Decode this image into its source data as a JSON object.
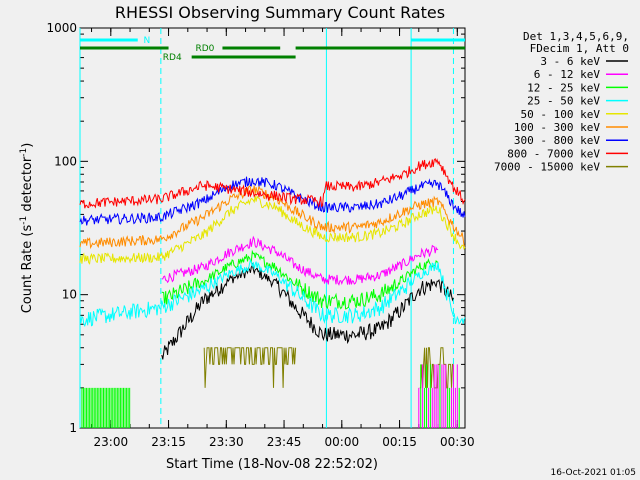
{
  "chart_data": {
    "type": "line",
    "title": "RHESSI Observing Summary Count Rates",
    "xlabel": "Start Time (18-Nov-08 22:52:02)",
    "ylabel": "Count Rate (s⁻¹ detector⁻¹)",
    "ylabel_main": "Count Rate (s",
    "ylabel_sup1": "-1",
    "ylabel_mid": " detector",
    "ylabel_sup2": "-1",
    "ylabel_end": ")",
    "yscale": "log",
    "ylim": [
      1,
      1000
    ],
    "xlim_minutes": [
      0,
      100
    ],
    "x_unit": "minutes after 22:52:02",
    "ytick_values": [
      1,
      10,
      100,
      1000
    ],
    "ytick_labels": [
      "1",
      "10",
      "100",
      "1000"
    ],
    "xtick_minutes": [
      8,
      23,
      38,
      53,
      68,
      83,
      98
    ],
    "xtick_labels": [
      "23:00",
      "23:15",
      "23:30",
      "23:45",
      "00:00",
      "00:15",
      "00:30"
    ],
    "legend_header": [
      "Det 1,3,4,5,6,9,",
      "FDecim 1, Att 0"
    ],
    "timestamp": "16-Oct-2021 01:05",
    "mode_bars": {
      "n_label": "N",
      "rd0_label": "RD0",
      "rd4_label": "RD4",
      "cyan": "#00ffff",
      "green": "#008000"
    },
    "vertical_markers_minutes": [
      21,
      97
    ],
    "vertical_lines_minutes": [
      0,
      64
    ],
    "series": [
      {
        "name": "3 - 6 keV",
        "color": "#000000",
        "t": [
          0,
          21,
          32,
          39,
          45,
          51,
          56,
          63,
          64,
          72,
          78,
          84,
          88,
          93,
          97,
          100
        ],
        "v": [
          null,
          3.3,
          9.0,
          13.0,
          15.5,
          12.0,
          8.0,
          5.0,
          5.0,
          5.0,
          5.5,
          8.0,
          11.0,
          12.5,
          9.0,
          null
        ]
      },
      {
        "name": "6 - 12 keV",
        "color": "#ff00ff",
        "t": [
          0,
          21,
          32,
          39,
          45,
          51,
          56,
          63,
          64,
          72,
          78,
          84,
          88,
          93,
          97,
          100
        ],
        "v": [
          null,
          13.0,
          16.0,
          21.0,
          25.0,
          21.0,
          16.5,
          13.0,
          13.0,
          13.0,
          14.0,
          17.0,
          20.0,
          22.0,
          null,
          null
        ]
      },
      {
        "name": "12 - 25 keV",
        "color": "#00ff00",
        "t": [
          0,
          21,
          32,
          39,
          45,
          51,
          56,
          63,
          64,
          72,
          78,
          84,
          88,
          93,
          97,
          100
        ],
        "v": [
          null,
          9.0,
          12.5,
          16.5,
          19.5,
          16.0,
          12.0,
          9.0,
          9.0,
          9.0,
          10.0,
          13.0,
          16.0,
          18.0,
          null,
          null
        ]
      },
      {
        "name": "25 - 50 keV",
        "color": "#00ffff",
        "t": [
          0,
          21,
          32,
          39,
          45,
          51,
          56,
          63,
          64,
          72,
          78,
          84,
          88,
          93,
          97,
          100
        ],
        "v": [
          6.5,
          8.0,
          11.0,
          14.5,
          17.0,
          14.0,
          10.5,
          7.0,
          7.0,
          7.0,
          8.0,
          11.0,
          14.0,
          17.0,
          7.0,
          6.5
        ]
      },
      {
        "name": "50 - 100 keV",
        "color": "#e6e600",
        "t": [
          0,
          21,
          32,
          39,
          45,
          51,
          56,
          63,
          64,
          72,
          78,
          84,
          88,
          93,
          97,
          100
        ],
        "v": [
          18.5,
          19.0,
          28.0,
          42.0,
          52.0,
          45.0,
          35.0,
          27.0,
          27.0,
          27.0,
          29.0,
          34.0,
          40.0,
          44.0,
          28.0,
          21.0
        ]
      },
      {
        "name": "100 - 300 keV",
        "color": "#ff8c00",
        "t": [
          0,
          21,
          32,
          39,
          45,
          51,
          56,
          63,
          64,
          72,
          78,
          84,
          88,
          93,
          97,
          100
        ],
        "v": [
          24.0,
          26.0,
          38.0,
          52.0,
          62.0,
          53.0,
          42.0,
          32.0,
          32.0,
          32.0,
          35.0,
          42.0,
          47.0,
          50.0,
          33.0,
          25.0
        ]
      },
      {
        "name": "300 - 800 keV",
        "color": "#0000ff",
        "t": [
          0,
          21,
          32,
          39,
          45,
          51,
          56,
          63,
          64,
          72,
          78,
          84,
          88,
          93,
          97,
          100
        ],
        "v": [
          36.0,
          38.0,
          50.0,
          66.0,
          72.0,
          66.0,
          55.0,
          45.0,
          45.0,
          45.0,
          48.0,
          56.0,
          64.0,
          68.0,
          47.0,
          38.0
        ]
      },
      {
        "name": "800 - 7000 keV",
        "color": "#ff0000",
        "t": [
          0,
          21,
          32,
          39,
          45,
          51,
          56,
          63,
          64,
          72,
          78,
          84,
          88,
          93,
          97,
          100
        ],
        "v": [
          48.0,
          52.0,
          66.0,
          62.0,
          58.0,
          55.0,
          52.0,
          50.0,
          65.0,
          64.0,
          70.0,
          80.0,
          92.0,
          102.0,
          64.0,
          50.0
        ]
      },
      {
        "name": "7000 - 15000 keV",
        "color": "#808000",
        "t": [
          0,
          21,
          32,
          39,
          45,
          51,
          56,
          63,
          64,
          72,
          78,
          84,
          88,
          93,
          97,
          100
        ],
        "v": [
          null,
          null,
          3.0,
          4.3,
          4.8,
          4.0,
          3.0,
          null,
          null,
          null,
          null,
          null,
          2.2,
          3.4,
          2.4,
          null
        ]
      }
    ]
  }
}
